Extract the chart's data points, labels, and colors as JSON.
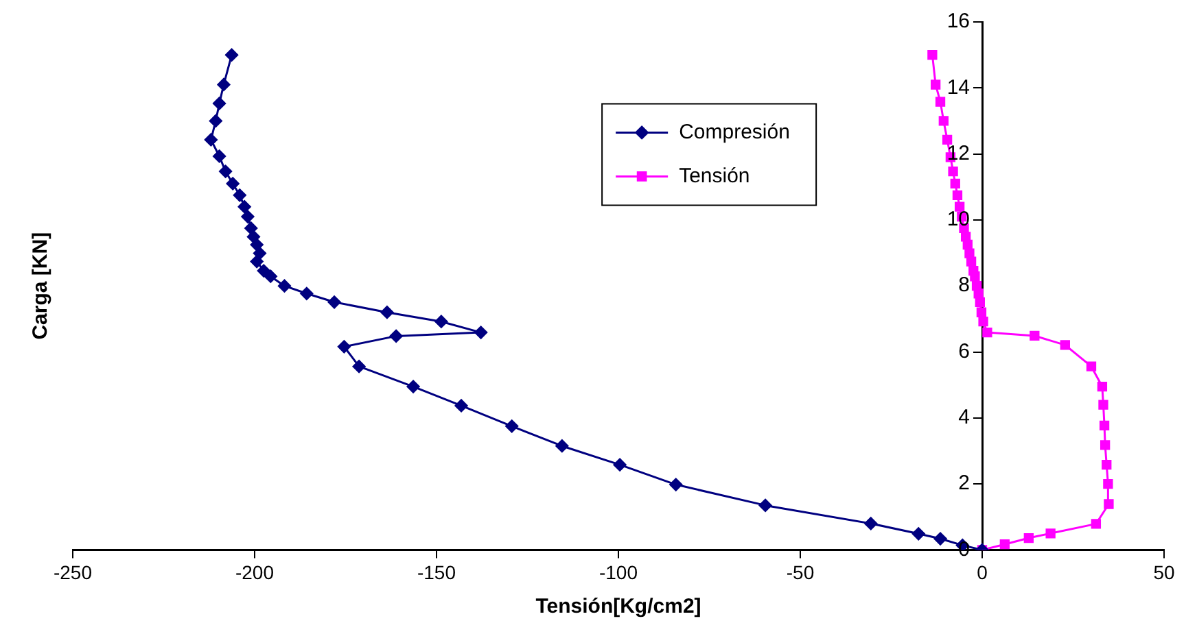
{
  "chart_data": {
    "type": "line",
    "xlabel": "Tensión[Kg/cm2]",
    "ylabel": "Carga [KN]",
    "xlim": [
      -250,
      50
    ],
    "xticks": [
      -250,
      -200,
      -150,
      -100,
      -50,
      0,
      50
    ],
    "ylim": [
      0,
      16
    ],
    "yticks": [
      0,
      2,
      4,
      6,
      8,
      10,
      12,
      14,
      16
    ],
    "grid": false,
    "legend": "top right",
    "line_style": "solid",
    "series": [
      {
        "name": "Compresión",
        "color": "#000080",
        "marker": "diamond",
        "x": [
          0,
          -5.4,
          -11.5,
          -17.5,
          -30.6,
          -59.6,
          -84.2,
          -99.6,
          -115.5,
          -129.3,
          -143.2,
          -156.4,
          -171.3,
          -175.4,
          -161.1,
          -137.8,
          -148.7,
          -163.6,
          -178.1,
          -185.7,
          -191.8,
          -195.6,
          -197.5,
          -199.4,
          -198.6,
          -199.4,
          -200.3,
          -201.0,
          -201.9,
          -202.8,
          -204.1,
          -206.0,
          -208.0,
          -209.7,
          -212.0,
          -210.7,
          -209.7,
          -208.5,
          -206.3
        ],
        "values": [
          0,
          0.14,
          0.34,
          0.49,
          0.8,
          1.35,
          1.98,
          2.58,
          3.15,
          3.75,
          4.37,
          4.95,
          5.56,
          6.16,
          6.48,
          6.59,
          6.92,
          7.2,
          7.51,
          7.77,
          8.0,
          8.29,
          8.46,
          8.74,
          8.99,
          9.25,
          9.49,
          9.75,
          10.1,
          10.4,
          10.75,
          11.1,
          11.47,
          11.93,
          12.43,
          13.0,
          13.53,
          14.1,
          15.0
        ]
      },
      {
        "name": "Tensión",
        "color": "#ff00ff",
        "marker": "square",
        "x": [
          0,
          6.2,
          12.8,
          18.8,
          31.3,
          34.8,
          34.6,
          34.2,
          33.8,
          33.6,
          33.3,
          33.0,
          30.0,
          22.8,
          14.4,
          1.4,
          0.3,
          -0.2,
          -0.6,
          -1.0,
          -1.5,
          -2.0,
          -2.4,
          -3.0,
          -3.5,
          -4.0,
          -4.5,
          -5.0,
          -5.6,
          -6.2,
          -6.8,
          -7.4,
          -8.0,
          -8.7,
          -9.6,
          -10.6,
          -11.5,
          -12.8,
          -13.7
        ],
        "values": [
          0,
          0.17,
          0.36,
          0.5,
          0.79,
          1.39,
          2.0,
          2.58,
          3.18,
          3.77,
          4.4,
          4.95,
          5.56,
          6.21,
          6.49,
          6.59,
          6.92,
          7.2,
          7.51,
          7.77,
          8.0,
          8.29,
          8.46,
          8.74,
          8.99,
          9.25,
          9.49,
          9.75,
          10.1,
          10.4,
          10.75,
          11.1,
          11.47,
          11.9,
          12.43,
          13.0,
          13.58,
          14.1,
          15.0
        ]
      }
    ]
  }
}
